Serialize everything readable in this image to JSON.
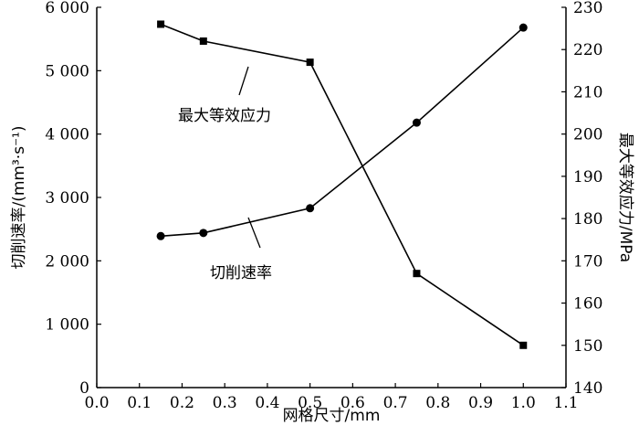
{
  "chart_data": {
    "type": "line",
    "x": [
      0.15,
      0.25,
      0.5,
      0.75,
      1.0
    ],
    "series": [
      {
        "name": "切削速率",
        "axis": "left",
        "marker": "circle",
        "values": [
          2390,
          2440,
          2830,
          4180,
          5680
        ]
      },
      {
        "name": "最大等效应力",
        "axis": "right",
        "marker": "square",
        "values": [
          226,
          222,
          217,
          167,
          150
        ]
      }
    ],
    "xlabel": "网格尺寸/mm",
    "ylabel_left": "切削速率/(mm³·s⁻¹)",
    "ylabel_right": "最大等效应力/MPa",
    "xlim": [
      0.0,
      1.1
    ],
    "ylim_left": [
      0,
      6000
    ],
    "ylim_right": [
      140,
      230
    ],
    "x_ticks": [
      "0.0",
      "0.1",
      "0.2",
      "0.3",
      "0.4",
      "0.5",
      "0.6",
      "0.7",
      "0.8",
      "0.9",
      "1.0",
      "1.1"
    ],
    "y_left_ticks": [
      "0",
      "1 000",
      "2 000",
      "3 000",
      "4 000",
      "5 000",
      "6 000"
    ],
    "y_right_ticks": [
      "140",
      "150",
      "160",
      "170",
      "180",
      "190",
      "200",
      "210",
      "220",
      "230"
    ],
    "annotations": [
      "最大等效应力",
      "切削速率"
    ],
    "grid": false,
    "colors": {
      "line": "#000000",
      "background": "#ffffff"
    }
  }
}
